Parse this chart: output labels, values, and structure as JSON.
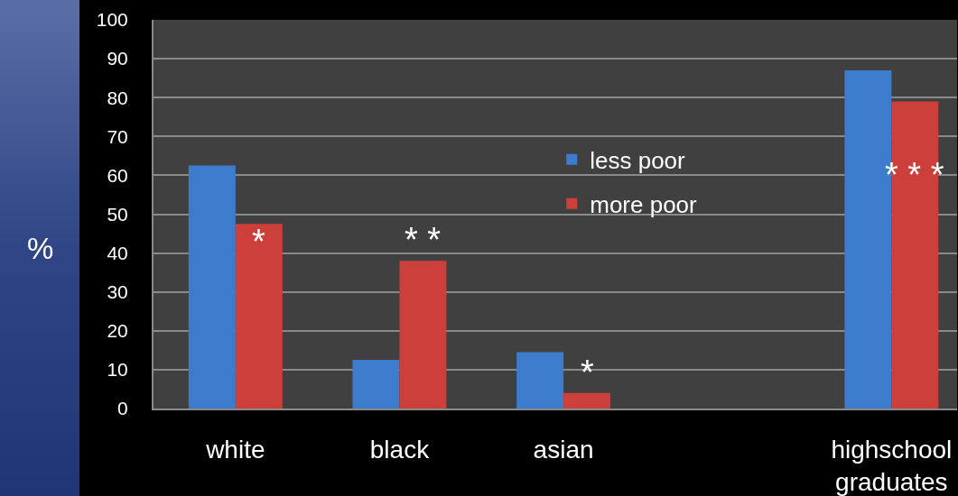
{
  "chart_data": {
    "type": "bar",
    "ylabel": "%",
    "categories": [
      "white",
      "black",
      "asian",
      null,
      "highschool graduates"
    ],
    "series": [
      {
        "name": "less poor",
        "color": "#3d7ccc",
        "values": [
          62.5,
          12.5,
          14.5,
          null,
          87
        ]
      },
      {
        "name": "more poor",
        "color": "#cc3f3b",
        "values": [
          47.5,
          38,
          4,
          null,
          79
        ]
      }
    ],
    "ylim": [
      0,
      100
    ],
    "yticks": [
      0,
      10,
      20,
      30,
      40,
      50,
      60,
      70,
      80,
      90,
      100
    ],
    "grid": "y",
    "legend": "top",
    "annotations": [
      {
        "text": "*",
        "x": "white",
        "y": 43
      },
      {
        "text": "* *",
        "x": "black",
        "y": 38
      },
      {
        "text": "*",
        "x": "asian",
        "y": 4
      },
      {
        "text": "* * *",
        "x": "highschool graduates",
        "y": 60
      }
    ]
  }
}
